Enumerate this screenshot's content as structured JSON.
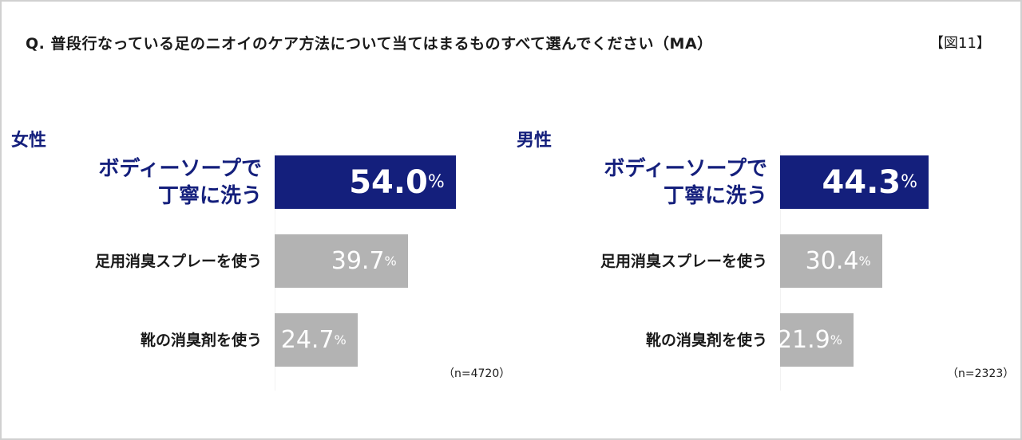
{
  "title": "Q. 普段行なっている足のニオイのケア方法について当てはまるものすべて選んでください（MA）",
  "figure_label": "【図11】",
  "chart_data": [
    {
      "type": "bar",
      "title": "女性",
      "categories": [
        "ボディーソープで\n丁寧に洗う",
        "足用消臭スプレーを使う",
        "靴の消臭剤を使う"
      ],
      "values": [
        54.0,
        39.7,
        24.7
      ],
      "value_labels": [
        "54.0",
        "39.7",
        "24.7"
      ],
      "unit": "%",
      "n_label": "（n=4720）",
      "highlight_color": "#141f7c",
      "bar_color": "#b3b3b3"
    },
    {
      "type": "bar",
      "title": "男性",
      "categories": [
        "ボディーソープで\n丁寧に洗う",
        "足用消臭スプレーを使う",
        "靴の消臭剤を使う"
      ],
      "values": [
        44.3,
        30.4,
        21.9
      ],
      "value_labels": [
        "44.3",
        "30.4",
        "21.9"
      ],
      "unit": "%",
      "n_label": "（n=2323）",
      "highlight_color": "#141f7c",
      "bar_color": "#b3b3b3"
    }
  ]
}
